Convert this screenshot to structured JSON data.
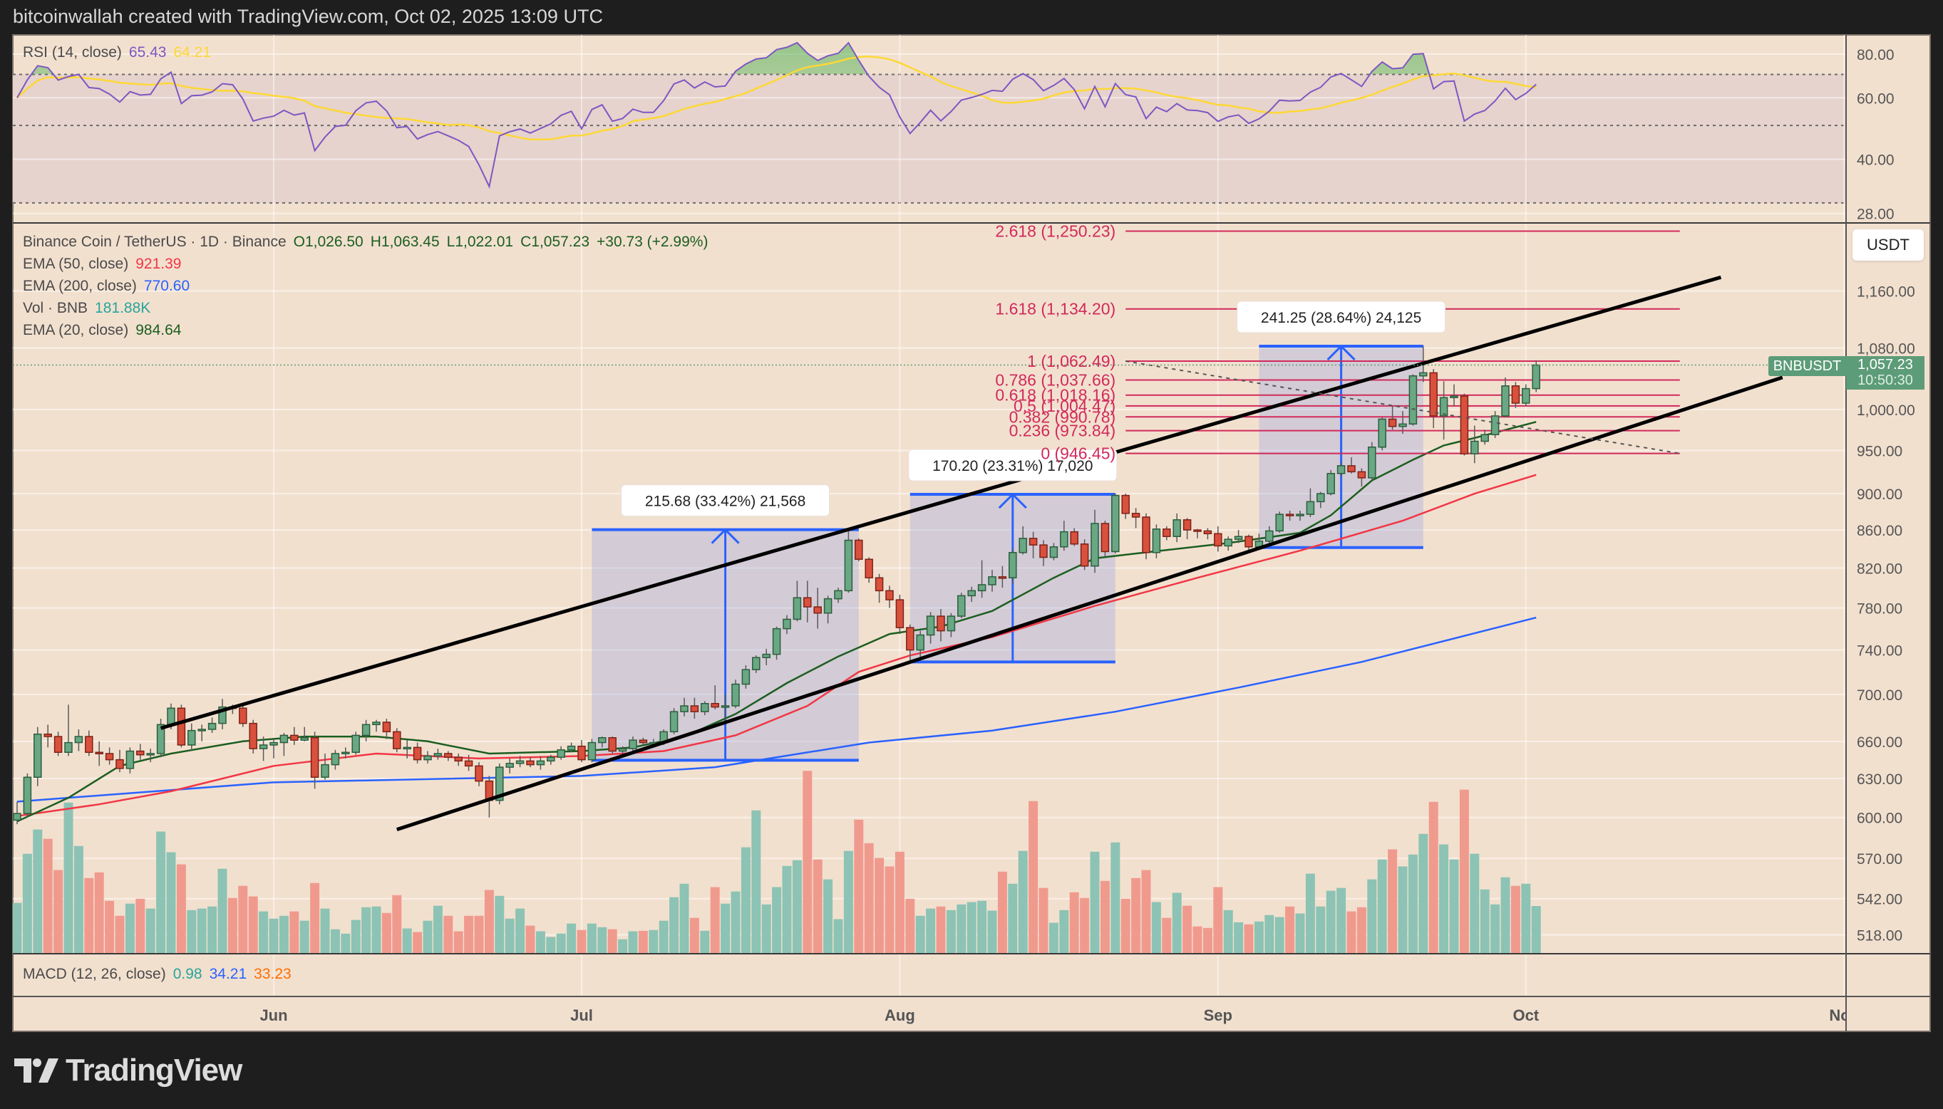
{
  "header": {
    "text": "bitcoinwallah created with TradingView.com, Oct 02, 2025 13:09 UTC"
  },
  "rsi_legend": {
    "label": "RSI (14, close)",
    "value": "65.43",
    "ma_value": "64.21",
    "line_color": "#7e57c2",
    "ma_color": "#fdd835"
  },
  "main_legend": {
    "symbol": "Binance Coin / TetherUS · 1D · Binance",
    "open": "O1,026.50",
    "high": "H1,063.45",
    "low": "L1,022.01",
    "close": "C1,057.23",
    "change": "+30.73 (+2.99%)"
  },
  "indicators": [
    {
      "label": "EMA (50, close)",
      "value": "921.39",
      "color": "#f23645"
    },
    {
      "label": "EMA (200, close)",
      "value": "770.60",
      "color": "#2962ff"
    },
    {
      "label": "Vol · BNB",
      "value": "181.88K",
      "color": "#26a69a"
    },
    {
      "label": "EMA (20, close)",
      "value": "984.64",
      "color": "#1b5e20"
    }
  ],
  "macd_legend": {
    "label": "MACD (12, 26, close)",
    "values": [
      "0.98",
      "34.21",
      "33.23"
    ],
    "colors": [
      "#26a69a",
      "#2962ff",
      "#ff6d00"
    ]
  },
  "price_scale": {
    "currency_button": "USDT",
    "symbol_tag": "BNBUSDT",
    "last_price": "1,057.23",
    "countdown": "10:50:30"
  },
  "footer": {
    "logo_text": "TradingView"
  },
  "chart_data": {
    "type": "candlestick",
    "start_date": "2025-05-07",
    "interval": "1D",
    "price_scale": "log",
    "price_ticks": [
      1160,
      1080,
      1000,
      950,
      900,
      860,
      820,
      780,
      740,
      700,
      660,
      630,
      600,
      570,
      542,
      518
    ],
    "price_tick_labels": [
      "1,160.00",
      "1,080.00",
      "1,000.00",
      "950.00",
      "900.00",
      "860.00",
      "820.00",
      "780.00",
      "740.00",
      "700.00",
      "660.00",
      "630.00",
      "600.00",
      "570.00",
      "542.00",
      "518.00"
    ],
    "time_ticks": [
      {
        "label": "Jun",
        "date": "2025-06-01"
      },
      {
        "label": "Jul",
        "date": "2025-07-01"
      },
      {
        "label": "Aug",
        "date": "2025-08-01"
      },
      {
        "label": "Sep",
        "date": "2025-09-01"
      },
      {
        "label": "Oct",
        "date": "2025-10-01"
      },
      {
        "label": "Nov",
        "date": "2025-11-01"
      }
    ],
    "colors": {
      "up": "#6aa784",
      "down": "#d9503d",
      "vol_up": "#8cc3b4",
      "vol_down": "#f09a8e",
      "fib": "#d12a5b",
      "measure": "#2962ff"
    },
    "ohlc": [
      [
        598,
        612,
        595,
        603
      ],
      [
        603,
        634,
        600,
        631
      ],
      [
        631,
        672,
        624,
        666
      ],
      [
        666,
        674,
        655,
        664
      ],
      [
        664,
        668,
        648,
        651
      ],
      [
        651,
        691,
        648,
        659
      ],
      [
        659,
        670,
        652,
        664
      ],
      [
        664,
        669,
        648,
        651
      ],
      [
        651,
        660,
        640,
        650
      ],
      [
        650,
        655,
        641,
        645
      ],
      [
        645,
        653,
        635,
        638
      ],
      [
        638,
        655,
        634,
        652
      ],
      [
        652,
        658,
        645,
        649
      ],
      [
        649,
        654,
        643,
        650
      ],
      [
        650,
        679,
        647,
        674
      ],
      [
        674,
        692,
        670,
        688
      ],
      [
        688,
        691,
        655,
        657
      ],
      [
        657,
        675,
        652,
        669
      ],
      [
        669,
        674,
        660,
        670
      ],
      [
        670,
        680,
        667,
        675
      ],
      [
        675,
        696,
        670,
        689
      ],
      [
        689,
        691,
        683,
        688
      ],
      [
        688,
        692,
        672,
        675
      ],
      [
        675,
        678,
        650,
        654
      ],
      [
        654,
        664,
        644,
        657
      ],
      [
        657,
        662,
        646,
        659
      ],
      [
        659,
        667,
        648,
        665
      ],
      [
        665,
        672,
        657,
        661
      ],
      [
        661,
        672,
        660,
        663
      ],
      [
        663,
        668,
        622,
        631
      ],
      [
        631,
        650,
        629,
        641
      ],
      [
        641,
        653,
        637,
        650
      ],
      [
        650,
        655,
        646,
        651
      ],
      [
        651,
        668,
        649,
        665
      ],
      [
        665,
        678,
        660,
        674
      ],
      [
        674,
        678,
        668,
        676
      ],
      [
        676,
        679,
        662,
        668
      ],
      [
        668,
        671,
        651,
        654
      ],
      [
        654,
        661,
        646,
        655
      ],
      [
        655,
        659,
        642,
        645
      ],
      [
        645,
        652,
        642,
        648
      ],
      [
        648,
        654,
        645,
        650
      ],
      [
        650,
        652,
        644,
        647
      ],
      [
        647,
        650,
        640,
        644
      ],
      [
        644,
        649,
        636,
        640
      ],
      [
        640,
        643,
        624,
        628
      ],
      [
        628,
        632,
        600,
        613
      ],
      [
        613,
        642,
        610,
        639
      ],
      [
        639,
        646,
        634,
        642
      ],
      [
        642,
        648,
        639,
        644
      ],
      [
        644,
        647,
        639,
        641
      ],
      [
        641,
        648,
        637,
        644
      ],
      [
        644,
        649,
        641,
        647
      ],
      [
        647,
        656,
        645,
        653
      ],
      [
        653,
        659,
        651,
        656
      ],
      [
        656,
        661,
        643,
        645
      ],
      [
        645,
        662,
        643,
        659
      ],
      [
        659,
        664,
        655,
        663
      ],
      [
        663,
        664,
        650,
        652
      ],
      [
        652,
        656,
        649,
        654
      ],
      [
        654,
        664,
        652,
        661
      ],
      [
        661,
        663,
        657,
        659
      ],
      [
        659,
        662,
        655,
        659
      ],
      [
        659,
        670,
        657,
        668
      ],
      [
        668,
        688,
        666,
        685
      ],
      [
        685,
        697,
        681,
        690
      ],
      [
        690,
        697,
        679,
        685
      ],
      [
        685,
        694,
        682,
        692
      ],
      [
        692,
        708,
        687,
        689
      ],
      [
        689,
        700,
        675,
        690
      ],
      [
        690,
        713,
        688,
        709
      ],
      [
        709,
        726,
        705,
        722
      ],
      [
        722,
        735,
        719,
        733
      ],
      [
        733,
        741,
        726,
        736
      ],
      [
        736,
        762,
        731,
        760
      ],
      [
        760,
        773,
        755,
        769
      ],
      [
        769,
        807,
        767,
        790
      ],
      [
        790,
        807,
        766,
        781
      ],
      [
        781,
        800,
        760,
        775
      ],
      [
        775,
        792,
        765,
        789
      ],
      [
        789,
        800,
        785,
        797
      ],
      [
        797,
        860,
        795,
        849
      ],
      [
        849,
        851,
        827,
        829
      ],
      [
        829,
        831,
        805,
        810
      ],
      [
        810,
        814,
        785,
        797
      ],
      [
        797,
        802,
        780,
        788
      ],
      [
        788,
        793,
        755,
        761
      ],
      [
        761,
        764,
        729,
        740
      ],
      [
        740,
        758,
        733,
        754
      ],
      [
        754,
        776,
        746,
        772
      ],
      [
        772,
        779,
        748,
        758
      ],
      [
        758,
        775,
        752,
        772
      ],
      [
        772,
        795,
        770,
        792
      ],
      [
        792,
        801,
        786,
        797
      ],
      [
        797,
        828,
        790,
        803
      ],
      [
        803,
        818,
        796,
        811
      ],
      [
        811,
        822,
        800,
        810
      ],
      [
        810,
        840,
        804,
        836
      ],
      [
        836,
        864,
        834,
        851
      ],
      [
        851,
        858,
        830,
        844
      ],
      [
        844,
        849,
        822,
        831
      ],
      [
        831,
        846,
        828,
        842
      ],
      [
        842,
        870,
        838,
        858
      ],
      [
        858,
        862,
        843,
        845
      ],
      [
        845,
        850,
        818,
        822
      ],
      [
        822,
        882,
        815,
        867
      ],
      [
        867,
        870,
        832,
        837
      ],
      [
        837,
        900,
        835,
        898
      ],
      [
        898,
        900,
        872,
        878
      ],
      [
        878,
        884,
        862,
        874
      ],
      [
        874,
        878,
        829,
        836
      ],
      [
        836,
        866,
        830,
        861
      ],
      [
        861,
        864,
        849,
        853
      ],
      [
        853,
        878,
        847,
        871
      ],
      [
        871,
        873,
        850,
        860
      ],
      [
        860,
        861,
        851,
        859
      ],
      [
        859,
        862,
        850,
        856
      ],
      [
        856,
        864,
        837,
        843
      ],
      [
        843,
        853,
        838,
        850
      ],
      [
        850,
        860,
        846,
        853
      ],
      [
        853,
        855,
        838,
        842
      ],
      [
        842,
        856,
        839,
        848
      ],
      [
        848,
        864,
        846,
        859
      ],
      [
        859,
        880,
        857,
        877
      ],
      [
        877,
        881,
        870,
        876
      ],
      [
        876,
        881,
        870,
        877
      ],
      [
        877,
        906,
        874,
        891
      ],
      [
        891,
        902,
        884,
        900
      ],
      [
        900,
        927,
        898,
        923
      ],
      [
        923,
        936,
        919,
        932
      ],
      [
        932,
        942,
        923,
        925
      ],
      [
        925,
        929,
        908,
        918
      ],
      [
        918,
        960,
        916,
        954
      ],
      [
        954,
        990,
        950,
        988
      ],
      [
        988,
        1005,
        975,
        979
      ],
      [
        979,
        998,
        970,
        982
      ],
      [
        982,
        1045,
        980,
        1043
      ],
      [
        1043,
        1083,
        1035,
        1047
      ],
      [
        1047,
        1052,
        977,
        992
      ],
      [
        992,
        1036,
        963,
        1015
      ],
      [
        1015,
        1032,
        1004,
        1017
      ],
      [
        1017,
        1020,
        944,
        946
      ],
      [
        946,
        980,
        935,
        961
      ],
      [
        961,
        975,
        957,
        969
      ],
      [
        969,
        998,
        965,
        992
      ],
      [
        992,
        1041,
        990,
        1030
      ],
      [
        1030,
        1035,
        1002,
        1008
      ],
      [
        1008,
        1032,
        1004,
        1026.5
      ],
      [
        1026.5,
        1063.45,
        1022.01,
        1057.23
      ]
    ],
    "volume_k": [
      194,
      384,
      478,
      442,
      321,
      582,
      414,
      290,
      312,
      202,
      144,
      191,
      210,
      172,
      470,
      390,
      343,
      166,
      172,
      180,
      326,
      213,
      260,
      219,
      161,
      133,
      144,
      161,
      125,
      271,
      172,
      92,
      75,
      128,
      177,
      180,
      155,
      224,
      95,
      81,
      125,
      183,
      144,
      84,
      144,
      144,
      244,
      221,
      133,
      172,
      106,
      84,
      62,
      75,
      114,
      89,
      114,
      100,
      92,
      53,
      84,
      86,
      89,
      125,
      216,
      268,
      136,
      86,
      255,
      191,
      238,
      409,
      552,
      188,
      255,
      337,
      359,
      705,
      362,
      285,
      131,
      395,
      516,
      425,
      368,
      335,
      392,
      210,
      144,
      172,
      180,
      166,
      188,
      197,
      202,
      164,
      315,
      268,
      395,
      588,
      252,
      117,
      166,
      235,
      213,
      392,
      279,
      428,
      210,
      290,
      321,
      197,
      136,
      233,
      183,
      103,
      97,
      255,
      166,
      119,
      111,
      122,
      147,
      139,
      180,
      153,
      307,
      180,
      241,
      252,
      161,
      177,
      285,
      362,
      401,
      335,
      381,
      461,
      585,
      420,
      362,
      632,
      384,
      246,
      188,
      293,
      260,
      268,
      181.88
    ],
    "ema_20": [
      [
        0,
        597
      ],
      [
        5,
        615
      ],
      [
        10,
        640
      ],
      [
        15,
        650
      ],
      [
        22,
        660
      ],
      [
        28,
        664
      ],
      [
        35,
        664
      ],
      [
        40,
        660
      ],
      [
        46,
        650
      ],
      [
        55,
        652
      ],
      [
        60,
        655
      ],
      [
        65,
        664
      ],
      [
        70,
        683
      ],
      [
        75,
        710
      ],
      [
        80,
        734
      ],
      [
        85,
        755
      ],
      [
        90,
        762
      ],
      [
        95,
        777
      ],
      [
        101,
        810
      ],
      [
        105,
        830
      ],
      [
        109,
        835
      ],
      [
        118,
        846
      ],
      [
        125,
        857
      ],
      [
        128,
        876
      ],
      [
        132,
        915
      ],
      [
        136,
        939
      ],
      [
        139,
        956
      ],
      [
        142,
        965
      ],
      [
        148,
        984.64
      ]
    ],
    "ema_50": [
      [
        0,
        601
      ],
      [
        8,
        610
      ],
      [
        15,
        620
      ],
      [
        25,
        640
      ],
      [
        35,
        650
      ],
      [
        45,
        646
      ],
      [
        55,
        648
      ],
      [
        63,
        652
      ],
      [
        70,
        665
      ],
      [
        77,
        690
      ],
      [
        82,
        720
      ],
      [
        87,
        735
      ],
      [
        95,
        752
      ],
      [
        105,
        782
      ],
      [
        115,
        810
      ],
      [
        125,
        838
      ],
      [
        135,
        870
      ],
      [
        142,
        900
      ],
      [
        148,
        921.39
      ]
    ],
    "ema_200": [
      [
        0,
        612
      ],
      [
        25,
        627
      ],
      [
        55,
        632
      ],
      [
        68,
        639
      ],
      [
        83,
        659
      ],
      [
        95,
        669
      ],
      [
        107,
        685
      ],
      [
        119,
        706
      ],
      [
        131,
        729
      ],
      [
        148,
        770.6
      ]
    ],
    "rsi": {
      "period": 14,
      "ma_period": 14,
      "scale": "log",
      "ticks": [
        80,
        60,
        40,
        28
      ],
      "tick_labels": [
        "80.00",
        "60.00",
        "40.00",
        "28.00"
      ],
      "bands": [
        70,
        50,
        30
      ]
    },
    "drawings": {
      "channel_upper": {
        "from": [
          "2025-05-21",
          671
        ],
        "to": [
          "2025-10-20",
          1180
        ]
      },
      "channel_lower": {
        "from": [
          "2025-06-13",
          591
        ],
        "to": [
          "2025-10-26",
          1041
        ]
      },
      "trendline_dashed": {
        "from": [
          "2025-08-23",
          1062.49
        ],
        "to": [
          "2025-10-16",
          946.45
        ]
      },
      "fib_range": {
        "from": "2025-08-23",
        "to": "2025-10-16"
      },
      "fib_levels": [
        {
          "ratio": 2.618,
          "price": 1250.23,
          "label": "2.618 (1,250.23)"
        },
        {
          "ratio": 1.618,
          "price": 1134.2,
          "label": "1.618 (1,134.20)"
        },
        {
          "ratio": 1,
          "price": 1062.49,
          "label": "1 (1,062.49)"
        },
        {
          "ratio": 0.786,
          "price": 1037.66,
          "label": "0.786 (1,037.66)"
        },
        {
          "ratio": 0.618,
          "price": 1018.16,
          "label": "0.618 (1,018.16)"
        },
        {
          "ratio": 0.5,
          "price": 1004.47,
          "label": "0.5 (1,004.47)"
        },
        {
          "ratio": 0.382,
          "price": 990.78,
          "label": "0.382 (990.78)"
        },
        {
          "ratio": 0.236,
          "price": 973.84,
          "label": "0.236 (973.84)"
        },
        {
          "ratio": 0,
          "price": 946.45,
          "label": "0 (946.45)"
        }
      ],
      "measures": [
        {
          "label": "215.68 (33.42%) 21,568",
          "from": "2025-07-02",
          "to": "2025-07-28",
          "low": 644.6,
          "high": 860.3
        },
        {
          "label": "170.20 (23.31%) 17,020",
          "from": "2025-08-02",
          "to": "2025-08-22",
          "low": 729.0,
          "high": 899.2
        },
        {
          "label": "241.25 (28.64%) 24,125",
          "from": "2025-09-05",
          "to": "2025-09-21",
          "low": 841.3,
          "high": 1082.5
        }
      ]
    }
  }
}
